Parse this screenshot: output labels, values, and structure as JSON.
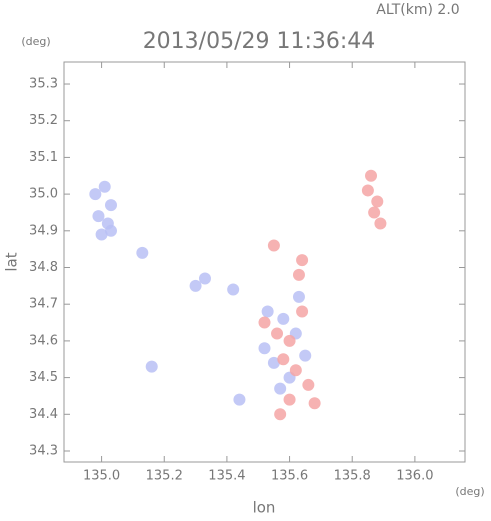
{
  "chart_data": {
    "type": "scatter",
    "title": "2013/05/29 11:36:44",
    "annotation": "ALT(km) 2.0",
    "y_unit": "(deg)",
    "x_unit": "(deg)",
    "xlabel": "lon",
    "ylabel": "lat",
    "xlim": [
      134.88,
      136.16
    ],
    "ylim": [
      34.27,
      35.36
    ],
    "xticks": [
      {
        "value": 135,
        "label": "135.0"
      },
      135.2,
      135.4,
      135.6,
      135.8,
      {
        "value": 136,
        "label": "136.0"
      }
    ],
    "yticks": [
      34.3,
      34.4,
      34.5,
      34.6,
      34.7,
      34.8,
      34.9,
      {
        "value": 35,
        "label": "35.0"
      },
      35.1,
      35.2,
      35.3
    ],
    "series": [
      {
        "color": "#b8bff5",
        "x": [
          134.98,
          135.01,
          135.03,
          134.99,
          135.02,
          135.0,
          135.03,
          135.13,
          135.3,
          135.33,
          135.42,
          135.16,
          135.44,
          135.52,
          135.58,
          135.62,
          135.55,
          135.6,
          135.65,
          135.57,
          135.53,
          135.63
        ],
        "y": [
          35.0,
          35.02,
          34.97,
          34.94,
          34.92,
          34.89,
          34.9,
          34.84,
          34.75,
          34.77,
          34.74,
          34.53,
          34.44,
          34.58,
          34.66,
          34.62,
          34.54,
          34.5,
          34.56,
          34.47,
          34.68,
          34.72
        ]
      },
      {
        "color": "#f4a4a4",
        "x": [
          135.86,
          135.85,
          135.88,
          135.87,
          135.89,
          135.52,
          135.56,
          135.6,
          135.64,
          135.58,
          135.62,
          135.66,
          135.6,
          135.68,
          135.57,
          135.63,
          135.64,
          135.55
        ],
        "y": [
          35.05,
          35.01,
          34.98,
          34.95,
          34.92,
          34.65,
          34.62,
          34.6,
          34.68,
          34.55,
          34.52,
          34.48,
          34.44,
          34.43,
          34.4,
          34.78,
          34.82,
          34.86
        ]
      }
    ]
  }
}
